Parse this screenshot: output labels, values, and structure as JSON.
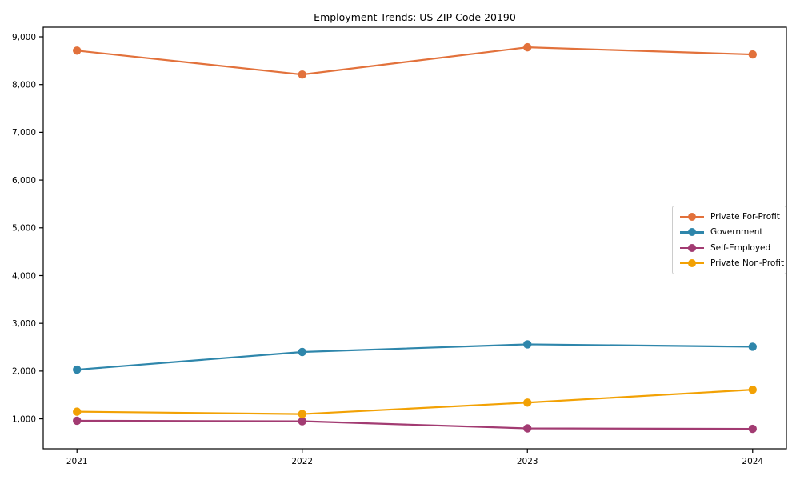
{
  "chart_data": {
    "type": "line",
    "title": "Employment Trends: US ZIP Code 20190",
    "x": [
      2021,
      2022,
      2023,
      2024
    ],
    "x_tick_labels": [
      "2021",
      "2022",
      "2023",
      "2024"
    ],
    "y_ticks": [
      1000,
      2000,
      3000,
      4000,
      5000,
      6000,
      7000,
      8000,
      9000
    ],
    "y_tick_labels": [
      "1,000",
      "2,000",
      "3,000",
      "4,000",
      "5,000",
      "6,000",
      "7,000",
      "8,000",
      "9,000"
    ],
    "xlim": [
      2020.85,
      2024.15
    ],
    "ylim": [
      373,
      9201
    ],
    "grid": false,
    "legend_position": "center right",
    "marker": "circle",
    "background_color": "#ffffff",
    "axis_color": "#000000",
    "series": [
      {
        "name": "Private For-Profit",
        "color": "#E2713B",
        "values": [
          8710,
          8210,
          8780,
          8630
        ]
      },
      {
        "name": "Government",
        "color": "#2E86AB",
        "values": [
          2030,
          2400,
          2560,
          2510
        ]
      },
      {
        "name": "Self-Employed",
        "color": "#A23B72",
        "values": [
          960,
          950,
          800,
          790
        ]
      },
      {
        "name": "Private Non-Profit",
        "color": "#F2A104",
        "values": [
          1150,
          1100,
          1340,
          1610
        ]
      }
    ]
  }
}
